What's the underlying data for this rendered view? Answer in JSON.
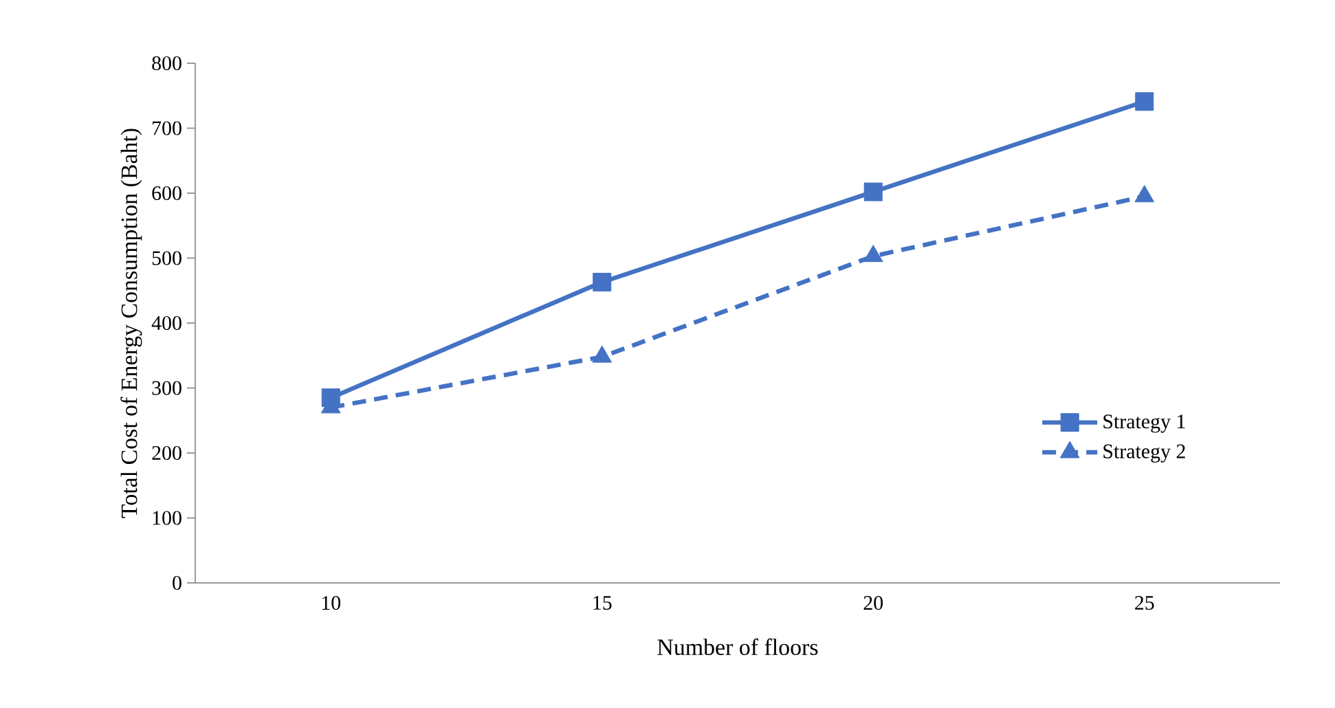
{
  "chart_data": {
    "type": "line",
    "xlabel": "Number of floors",
    "ylabel": "Total Cost of Energy Consumption (Baht)",
    "categories": [
      "10",
      "15",
      "20",
      "25"
    ],
    "series": [
      {
        "name": "Strategy 1",
        "color": "#4472c4",
        "marker": "square",
        "line_style": "solid",
        "values": [
          285,
          463,
          602,
          741
        ]
      },
      {
        "name": "Strategy 2",
        "color": "#4472c4",
        "marker": "triangle",
        "line_style": "dashed",
        "values": [
          270,
          348,
          503,
          595
        ]
      }
    ],
    "ylim": [
      0,
      800
    ],
    "yticks": [
      0,
      100,
      200,
      300,
      400,
      500,
      600,
      700,
      800
    ],
    "legend": "right"
  }
}
